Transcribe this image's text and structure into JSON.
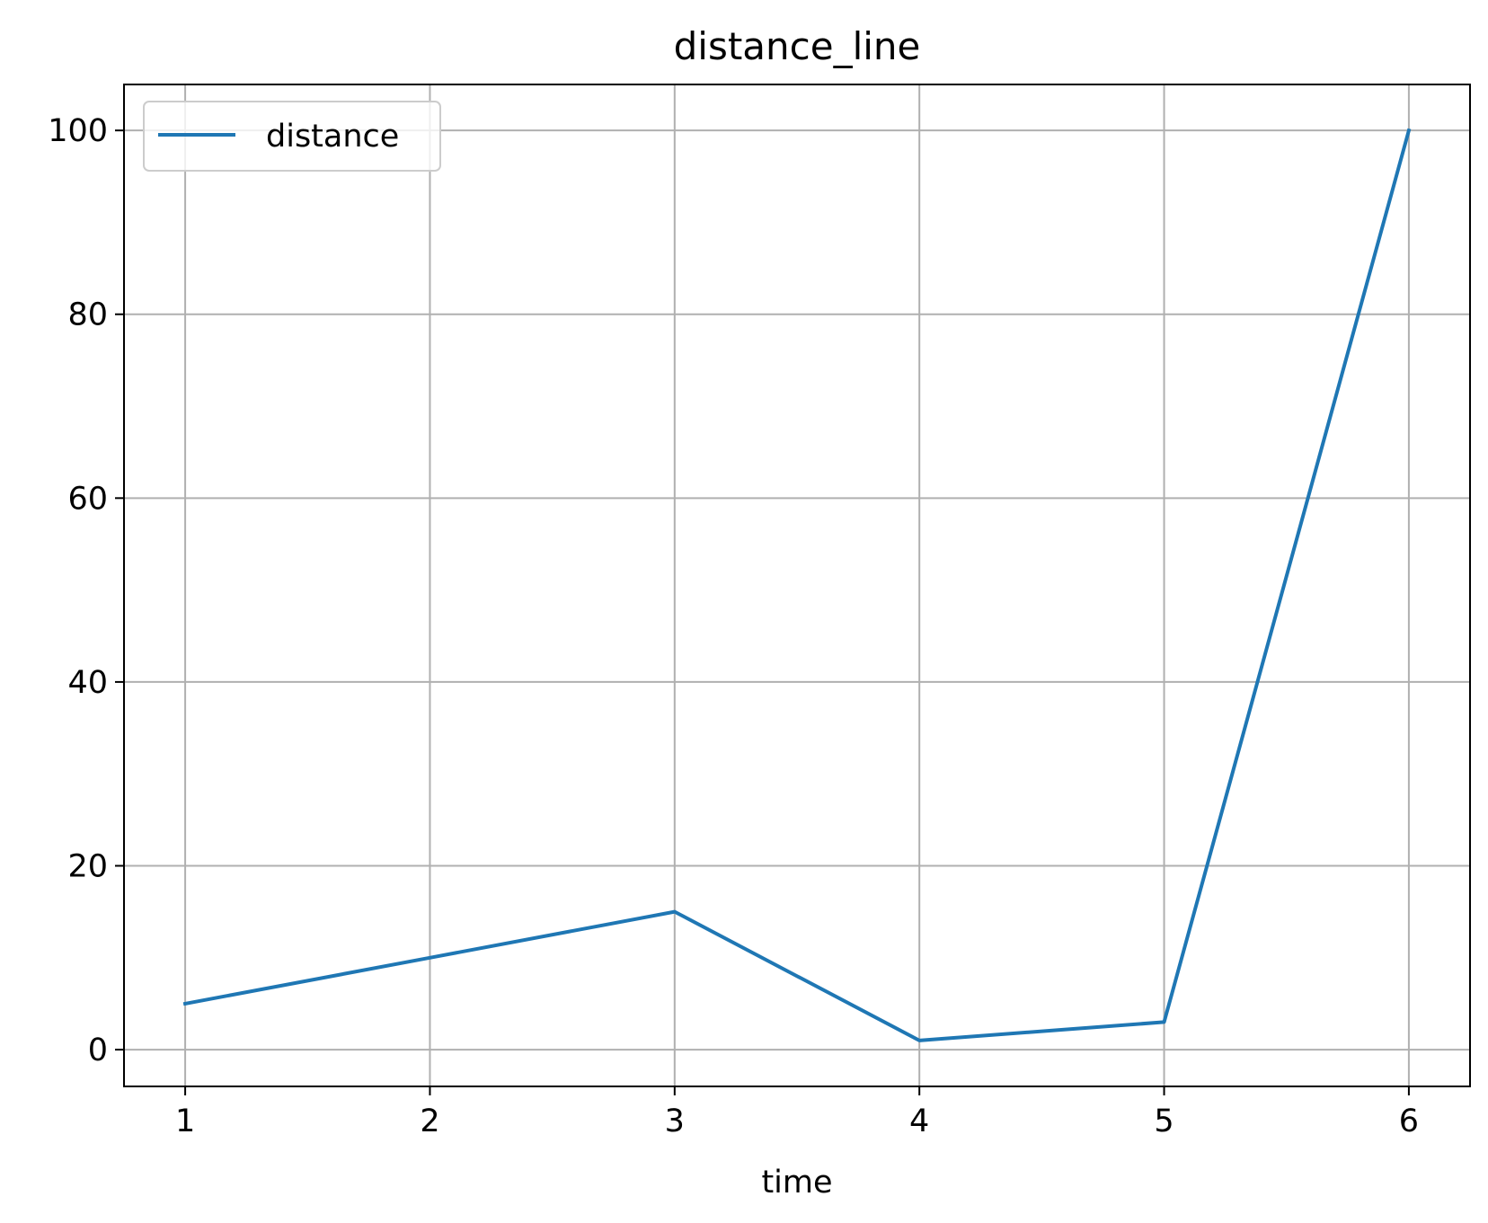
{
  "chart_data": {
    "type": "line",
    "title": "distance_line",
    "xlabel": "time",
    "ylabel": "",
    "x": [
      1,
      2,
      3,
      4,
      5,
      6
    ],
    "series": [
      {
        "name": "distance",
        "values": [
          5,
          10,
          15,
          1,
          3,
          100
        ],
        "color": "#1f77b4"
      }
    ],
    "xlim": [
      0.75,
      6.25
    ],
    "ylim": [
      -4,
      105
    ],
    "xticks": [
      1,
      2,
      3,
      4,
      5,
      6
    ],
    "yticks": [
      0,
      20,
      40,
      60,
      80,
      100
    ],
    "grid": true,
    "legend": "upper-left"
  }
}
